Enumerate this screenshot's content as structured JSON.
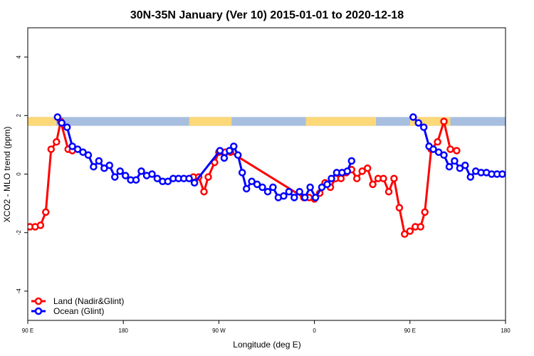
{
  "chart_data": {
    "type": "line",
    "title": "30N-35N January (Ver 10)   2015-01-01 to 2020-12-18",
    "xlabel": "Longitude (deg E)",
    "ylabel": "XCO2 - MLO trend (ppm)",
    "xlim": [
      90,
      540
    ],
    "ylim": [
      -5,
      5
    ],
    "x_ticks": [
      {
        "value": 90,
        "label": "90 E"
      },
      {
        "value": 180,
        "label": "180"
      },
      {
        "value": 270,
        "label": "90 W"
      },
      {
        "value": 360,
        "label": "0"
      },
      {
        "value": 450,
        "label": "90 E"
      },
      {
        "value": 540,
        "label": "180"
      }
    ],
    "y_ticks": [
      {
        "value": -4,
        "label": "-4"
      },
      {
        "value": -2,
        "label": "-2"
      },
      {
        "value": 0,
        "label": "0"
      },
      {
        "value": 2,
        "label": "2"
      },
      {
        "value": 4,
        "label": "4"
      }
    ],
    "grid": false,
    "legend_position": "bottom-left",
    "land_mask_band": {
      "y_range": [
        1.65,
        1.95
      ],
      "land_color": "#fdd878",
      "ocean_color": "#a7bedf",
      "land_segments": [
        [
          90,
          117
        ],
        [
          242,
          282
        ],
        [
          352,
          418
        ],
        [
          450,
          488
        ]
      ]
    },
    "series": [
      {
        "name": "Land (Nadir&Glint)",
        "color": "#ff0000",
        "x": [
          92,
          97,
          102,
          107,
          112,
          117,
          121,
          128,
          132,
          152,
          246,
          251,
          256,
          260,
          266,
          270,
          276,
          281,
          350,
          355,
          360,
          365,
          370,
          375,
          380,
          385,
          390,
          395,
          400,
          405,
          410,
          415,
          420,
          425,
          430,
          435,
          440,
          445,
          450,
          455,
          460,
          464,
          470,
          476,
          482,
          488,
          494
        ],
        "y": [
          -1.8,
          -1.8,
          -1.75,
          -1.3,
          0.85,
          1.1,
          1.8,
          0.85,
          0.8,
          null,
          -0.1,
          -0.1,
          -0.6,
          -0.1,
          0.4,
          0.75,
          0.75,
          0.75,
          -0.8,
          -0.8,
          -0.85,
          -0.65,
          -0.3,
          -0.45,
          -0.15,
          -0.15,
          0.05,
          0.15,
          -0.15,
          0.1,
          0.2,
          -0.35,
          -0.15,
          -0.15,
          -0.6,
          -0.15,
          -1.15,
          -2.05,
          -1.95,
          -1.8,
          -1.8,
          -1.3,
          0.85,
          1.1,
          1.8,
          0.85,
          0.8
        ]
      },
      {
        "name": "Ocean (Glint)",
        "color": "#0000ff",
        "x": [
          118,
          122,
          127,
          132,
          137,
          142,
          147,
          152,
          157,
          162,
          167,
          172,
          177,
          182,
          187,
          192,
          197,
          202,
          207,
          212,
          217,
          222,
          227,
          232,
          237,
          242,
          247,
          271,
          275,
          280,
          284,
          288,
          292,
          296,
          301,
          306,
          311,
          316,
          321,
          326,
          331,
          336,
          341,
          346,
          351,
          356,
          361,
          367,
          372,
          376,
          381,
          386,
          391,
          395,
          400,
          404,
          453,
          458,
          463,
          468,
          472,
          477,
          482,
          487,
          492,
          497,
          502,
          507,
          512,
          517,
          522,
          527,
          532,
          537,
          542
        ],
        "y": [
          1.95,
          1.75,
          1.6,
          0.95,
          0.85,
          0.75,
          0.65,
          0.25,
          0.45,
          0.2,
          0.3,
          -0.1,
          0.1,
          -0.05,
          -0.2,
          -0.2,
          0.1,
          -0.05,
          0.0,
          -0.15,
          -0.25,
          -0.25,
          -0.15,
          -0.15,
          -0.15,
          -0.15,
          -0.3,
          0.8,
          0.55,
          0.8,
          0.95,
          0.65,
          0.05,
          -0.5,
          -0.25,
          -0.35,
          -0.45,
          -0.6,
          -0.45,
          -0.8,
          -0.75,
          -0.6,
          -0.8,
          -0.6,
          -0.8,
          -0.45,
          -0.8,
          -0.45,
          -0.35,
          -0.15,
          0.05,
          0.05,
          0.1,
          0.45,
          null,
          null,
          1.95,
          1.75,
          1.6,
          0.95,
          0.85,
          0.75,
          0.65,
          0.25,
          0.45,
          0.2,
          0.3,
          -0.1,
          0.1,
          0.05,
          0.05,
          0.0,
          0.0,
          0.0,
          0.0
        ]
      }
    ]
  }
}
